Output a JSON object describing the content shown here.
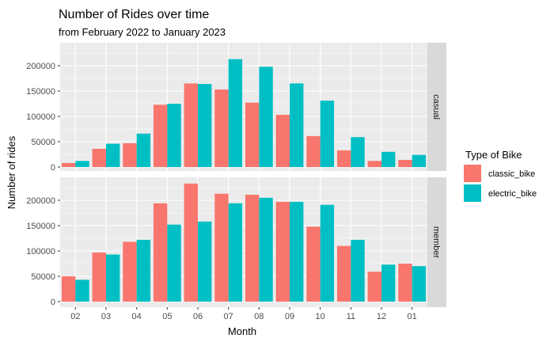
{
  "chart_data": {
    "type": "bar",
    "title": "Number of Rides over time",
    "subtitle": "from February 2022 to January 2023",
    "xlabel": "Month",
    "ylabel": "Number of rides",
    "categories": [
      "02",
      "03",
      "04",
      "05",
      "06",
      "07",
      "08",
      "09",
      "10",
      "11",
      "12",
      "01"
    ],
    "legend": {
      "title": "Type of Bike",
      "position": "right"
    },
    "grid": true,
    "facets": [
      {
        "label": "casual",
        "ylim": [
          0,
          240000
        ],
        "yticks": [
          0,
          50000,
          100000,
          150000,
          200000
        ],
        "series": [
          {
            "name": "classic_bike",
            "values": [
              8000,
              36000,
              47000,
              123000,
              165000,
              153000,
              127000,
              103000,
              61000,
              33000,
              12000,
              14000
            ]
          },
          {
            "name": "electric_bike",
            "values": [
              12000,
              46000,
              66000,
              125000,
              164000,
              213000,
              198000,
              165000,
              131000,
              59000,
              30000,
              24000
            ]
          }
        ]
      },
      {
        "label": "member",
        "ylim": [
          0,
          240000
        ],
        "yticks": [
          0,
          50000,
          100000,
          150000,
          200000
        ],
        "series": [
          {
            "name": "classic_bike",
            "values": [
              50000,
              97000,
              118000,
              194000,
              233000,
              213000,
              211000,
              197000,
              148000,
              110000,
              59000,
              75000
            ]
          },
          {
            "name": "electric_bike",
            "values": [
              43000,
              93000,
              122000,
              152000,
              158000,
              194000,
              205000,
              197000,
              191000,
              122000,
              73000,
              70000
            ]
          }
        ]
      }
    ],
    "colors": {
      "classic_bike": "#F8766D",
      "electric_bike": "#00BFC4",
      "panel_background": "#EBEBEB",
      "grid_line": "#FFFFFF",
      "strip_background": "#D9D9D9"
    }
  }
}
